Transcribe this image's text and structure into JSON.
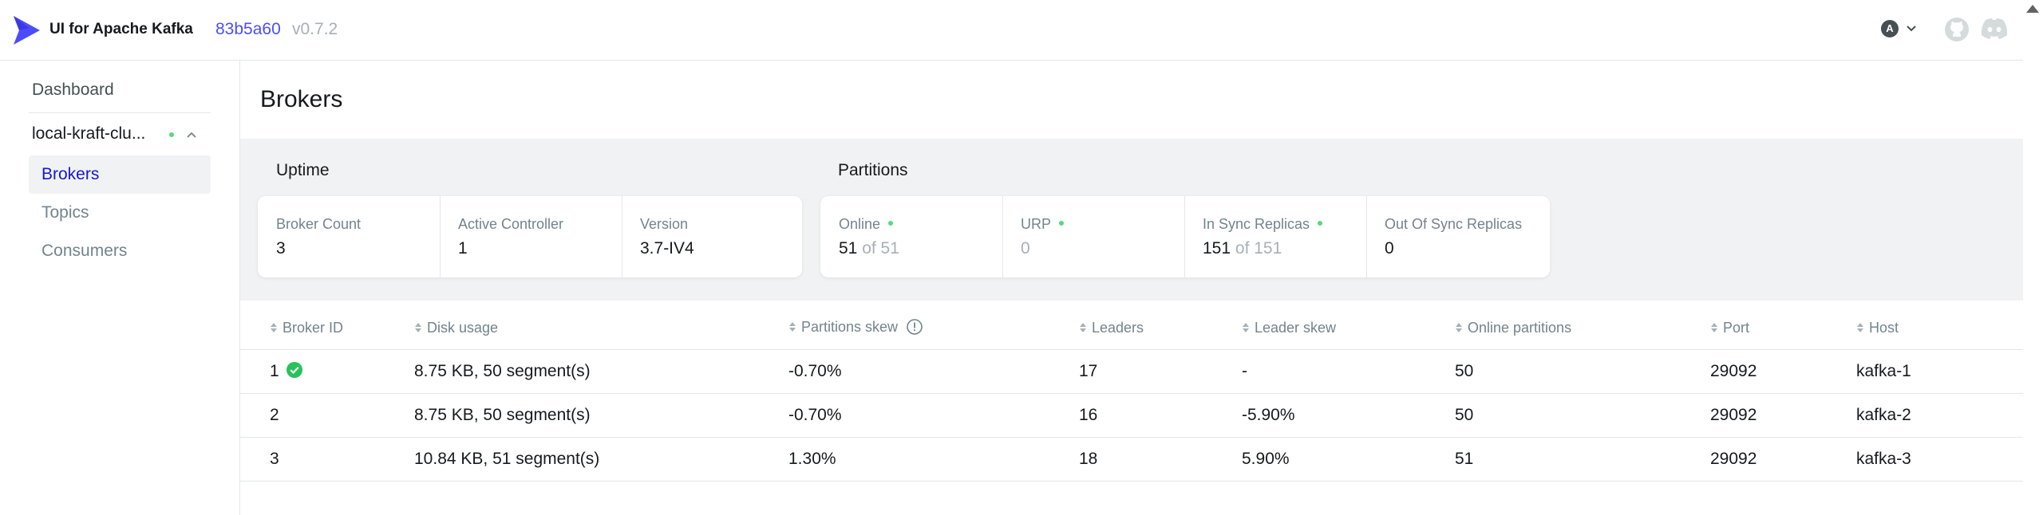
{
  "header": {
    "app_title": "UI for Apache Kafka",
    "git_commit": "83b5a60",
    "version": "v0.7.2",
    "user_initial": "A"
  },
  "sidebar": {
    "dashboard_label": "Dashboard",
    "cluster_name": "local-kraft-clu...",
    "cluster_status": "online",
    "items": [
      {
        "label": "Brokers",
        "active": true
      },
      {
        "label": "Topics",
        "active": false
      },
      {
        "label": "Consumers",
        "active": false
      }
    ]
  },
  "page": {
    "title": "Brokers"
  },
  "uptime": {
    "title": "Uptime",
    "broker_count_label": "Broker Count",
    "broker_count": "3",
    "active_controller_label": "Active Controller",
    "active_controller": "1",
    "version_label": "Version",
    "version": "3.7-IV4"
  },
  "partitions": {
    "title": "Partitions",
    "online_label": "Online",
    "online_value": "51",
    "online_total": "of 51",
    "urp_label": "URP",
    "urp_value": "0",
    "isr_label": "In Sync Replicas",
    "isr_value": "151",
    "isr_total": "of 151",
    "oosr_label": "Out Of Sync Replicas",
    "oosr_value": "0"
  },
  "table": {
    "columns": [
      "Broker ID",
      "Disk usage",
      "Partitions skew",
      "Leaders",
      "Leader skew",
      "Online partitions",
      "Port",
      "Host"
    ],
    "rows": [
      {
        "id": "1",
        "controller": true,
        "disk": "8.75 KB, 50 segment(s)",
        "pskew": "-0.70%",
        "leaders": "17",
        "lskew": "-",
        "online": "50",
        "port": "29092",
        "host": "kafka-1"
      },
      {
        "id": "2",
        "controller": false,
        "disk": "8.75 KB, 50 segment(s)",
        "pskew": "-0.70%",
        "leaders": "16",
        "lskew": "-5.90%",
        "online": "50",
        "port": "29092",
        "host": "kafka-2"
      },
      {
        "id": "3",
        "controller": false,
        "disk": "10.84 KB, 51 segment(s)",
        "pskew": "1.30%",
        "leaders": "18",
        "lskew": "5.90%",
        "online": "51",
        "port": "29092",
        "host": "kafka-3"
      }
    ]
  },
  "colors": {
    "accent": "#4c4cff",
    "nav_active_text": "#1717cf",
    "online_green": "#5ad67d",
    "muted_text": "#73848c"
  }
}
